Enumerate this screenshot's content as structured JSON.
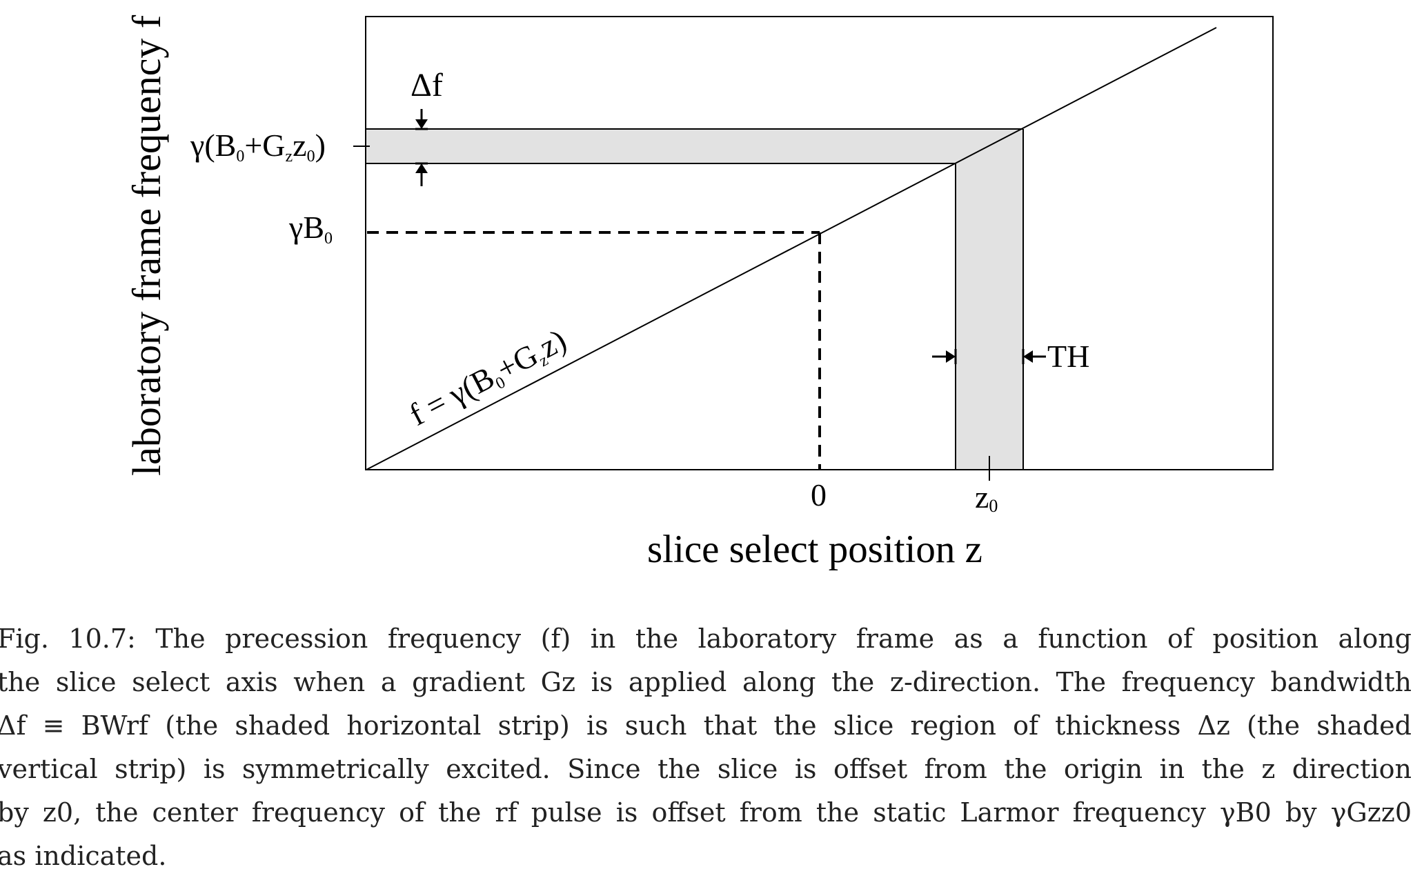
{
  "figure": {
    "y_axis_label": "laboratory frame frequency f",
    "x_axis_label": "slice select position z",
    "tick_zero": "0",
    "tick_z0_main": "z",
    "tick_z0_sub": "0",
    "label_delta_f": "Δf",
    "label_center_freq": {
      "gamma": "γ",
      "open": "(B",
      "sub0": "0",
      "plus": "+G",
      "subz": "z",
      "z": "z",
      "sub0b": "0",
      "close": ")"
    },
    "label_gamma_b0": {
      "gamma": "γ",
      "B": "B",
      "sub0": "0"
    },
    "line_equation": {
      "prefix": "f = γ(B",
      "sub0": "0",
      "plus": "+G",
      "subz": "z",
      "suffix": "z)"
    },
    "label_th": "TH"
  },
  "caption_lines": [
    "Fig. 10.7:  The precession frequency (f) in the laboratory frame as a function of position along",
    "the slice select axis when a gradient Gz is applied along the z-direction. The frequency bandwidth",
    "Δf ≡ BWrf (the shaded horizontal strip) is such that the slice region of thickness Δz (the shaded",
    "vertical strip) is symmetrically excited.  Since the slice is offset from the origin in the z direction",
    "by z0, the center frequency of the rf pulse is offset from the static Larmor frequency γB0 by γGzz0",
    "as indicated."
  ]
}
